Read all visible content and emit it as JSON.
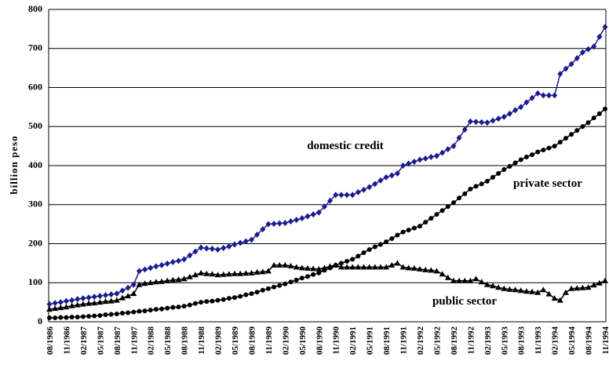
{
  "chart_data": {
    "type": "line",
    "ylabel": "billion peso",
    "annotations": [
      {
        "text": "domestic credit",
        "series": 0
      },
      {
        "text": "private sector",
        "series": 1
      },
      {
        "text": "public sector",
        "series": 2
      }
    ],
    "categories": [
      "08/1986",
      null,
      null,
      "11/1986",
      null,
      null,
      "02/1987",
      null,
      null,
      "05/1987",
      null,
      null,
      "08/1987",
      null,
      null,
      "11/1987",
      null,
      null,
      "02/1988",
      null,
      null,
      "05/1988",
      null,
      null,
      "08/1988",
      null,
      null,
      "11/1988",
      null,
      null,
      "02/1989",
      null,
      null,
      "05/1989",
      null,
      null,
      "08/1989",
      null,
      null,
      "11/1989",
      null,
      null,
      "02/1990",
      null,
      null,
      "05/1990",
      null,
      null,
      "08/1990",
      null,
      null,
      "11/1990",
      null,
      null,
      "02/1991",
      null,
      null,
      "05/1991",
      null,
      null,
      "08/1991",
      null,
      null,
      "11/1991",
      null,
      null,
      "02/1992",
      null,
      null,
      "05/1992",
      null,
      null,
      "08/1992",
      null,
      null,
      "11/1992",
      null,
      null,
      "02/1993",
      null,
      null,
      "05/1993",
      null,
      null,
      "08/1993",
      null,
      null,
      "11/1993",
      null,
      null,
      "02/1994",
      null,
      null,
      "05/1994",
      null,
      null,
      "08/1994",
      null,
      null,
      "11/1994"
    ],
    "series": [
      {
        "name": "domestic credit",
        "color": "#1c1c8c",
        "marker": "diamond",
        "values": [
          45,
          48,
          50,
          53,
          55,
          58,
          60,
          62,
          64,
          66,
          68,
          70,
          72,
          80,
          87,
          95,
          130,
          134,
          138,
          142,
          145,
          149,
          153,
          156,
          160,
          170,
          180,
          190,
          188,
          187,
          185,
          189,
          193,
          198,
          202,
          206,
          210,
          223,
          237,
          250,
          251,
          252,
          253,
          257,
          261,
          265,
          270,
          275,
          280,
          295,
          310,
          325,
          325,
          325,
          325,
          332,
          338,
          345,
          353,
          362,
          370,
          375,
          380,
          400,
          405,
          410,
          415,
          418,
          422,
          425,
          433,
          442,
          450,
          471,
          492,
          513,
          512,
          511,
          510,
          515,
          520,
          525,
          533,
          542,
          550,
          562,
          573,
          585,
          580,
          580,
          580,
          635,
          648,
          660,
          675,
          690,
          698,
          705,
          730,
          755
        ]
      },
      {
        "name": "private sector",
        "color": "#000000",
        "marker": "circle",
        "values": [
          10,
          10,
          11,
          11,
          12,
          12,
          13,
          14,
          15,
          16,
          18,
          19,
          20,
          22,
          23,
          25,
          27,
          28,
          30,
          32,
          33,
          35,
          37,
          38,
          40,
          43,
          47,
          50,
          52,
          53,
          55,
          57,
          60,
          62,
          65,
          69,
          72,
          76,
          81,
          85,
          89,
          93,
          97,
          102,
          107,
          112,
          116,
          121,
          125,
          132,
          138,
          145,
          150,
          155,
          160,
          168,
          177,
          185,
          192,
          198,
          205,
          213,
          222,
          230,
          235,
          240,
          245,
          255,
          265,
          275,
          285,
          295,
          305,
          317,
          328,
          340,
          347,
          353,
          360,
          370,
          380,
          390,
          398,
          407,
          415,
          422,
          428,
          435,
          440,
          445,
          450,
          460,
          470,
          480,
          490,
          500,
          510,
          522,
          533,
          545
        ]
      },
      {
        "name": "public sector",
        "color": "#000000",
        "marker": "triangle",
        "values": [
          32,
          34,
          36,
          38,
          41,
          43,
          45,
          47,
          48,
          50,
          52,
          53,
          55,
          61,
          66,
          72,
          95,
          98,
          100,
          102,
          103,
          105,
          107,
          108,
          110,
          115,
          120,
          125,
          123,
          122,
          120,
          121,
          122,
          123,
          123,
          124,
          125,
          127,
          128,
          130,
          145,
          145,
          145,
          143,
          140,
          138,
          137,
          136,
          135,
          138,
          142,
          145,
          140,
          140,
          140,
          140,
          140,
          140,
          140,
          140,
          140,
          145,
          150,
          140,
          138,
          137,
          135,
          133,
          132,
          130,
          122,
          113,
          105,
          105,
          105,
          105,
          110,
          102,
          95,
          92,
          88,
          85,
          83,
          82,
          80,
          78,
          77,
          75,
          82,
          71,
          60,
          55,
          75,
          85,
          86,
          87,
          88,
          94,
          99,
          105
        ]
      }
    ],
    "ylim": [
      0,
      800
    ],
    "yticks": [
      0,
      100,
      200,
      300,
      400,
      500,
      600,
      700,
      800
    ],
    "grid": true
  }
}
